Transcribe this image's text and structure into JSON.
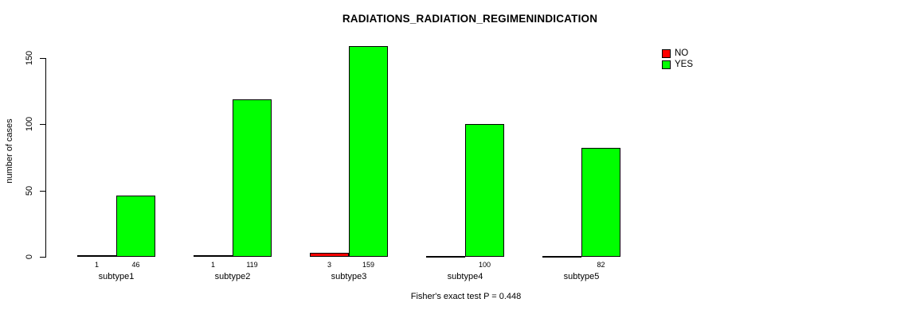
{
  "chart_data": {
    "type": "bar",
    "title": "RADIATIONS_RADIATION_REGIMENINDICATION",
    "ylabel": "number of cases",
    "xlabel": "",
    "categories": [
      "subtype1",
      "subtype2",
      "subtype3",
      "subtype4",
      "subtype5"
    ],
    "series": [
      {
        "name": "NO",
        "color": "#ff0000",
        "values": [
          1,
          1,
          3,
          0,
          0
        ],
        "labels": [
          "1",
          "1",
          "3",
          "",
          ""
        ]
      },
      {
        "name": "YES",
        "color": "#00ff00",
        "values": [
          46,
          119,
          159,
          100,
          82
        ],
        "labels": [
          "46",
          "119",
          "159",
          "100",
          "82"
        ]
      }
    ],
    "yticks": [
      0,
      50,
      100,
      150
    ],
    "ylim": [
      0,
      160
    ],
    "grid": false,
    "legend_position": "topright",
    "annotation": "Fisher's exact test P = 0.448"
  }
}
